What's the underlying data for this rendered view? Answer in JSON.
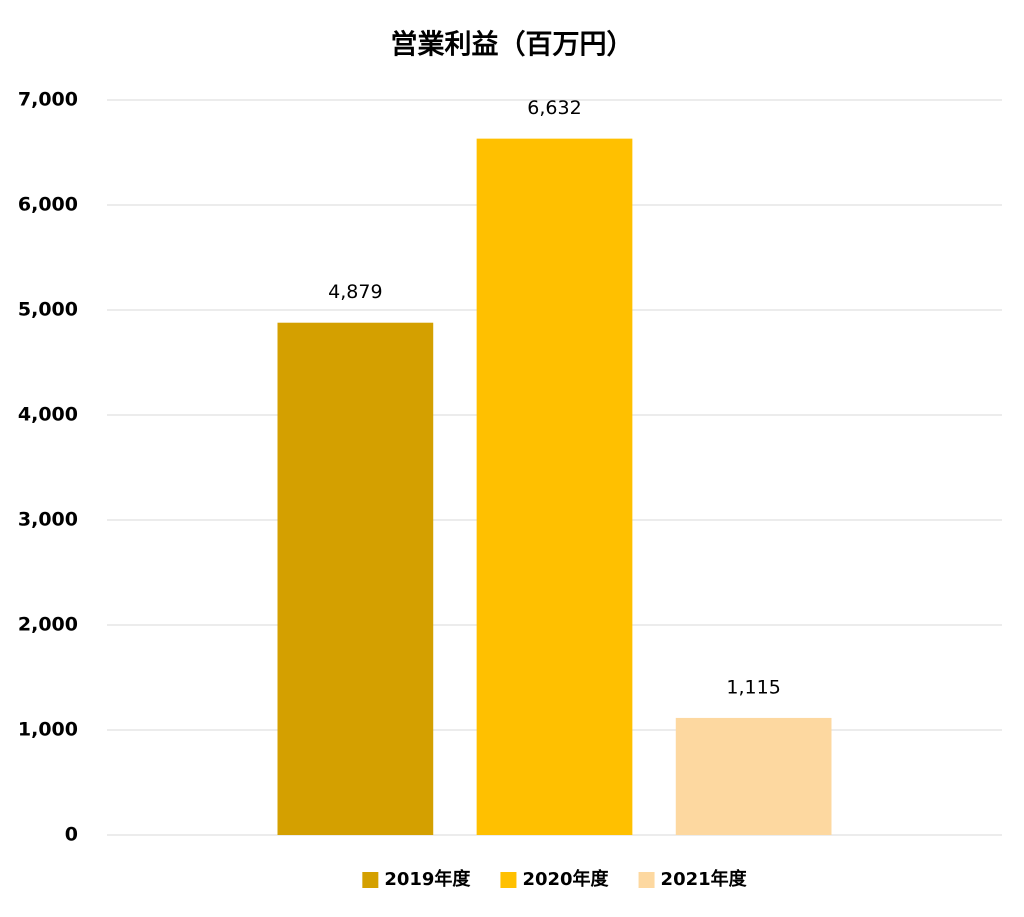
{
  "chart_data": {
    "type": "bar",
    "title": "営業利益（百万円）",
    "categories": [
      null
    ],
    "series": [
      {
        "name": "2019年度",
        "color": "#d4a000",
        "values": [
          4879
        ],
        "value_labels": [
          "4,879"
        ]
      },
      {
        "name": "2020年度",
        "color": "#ffc000",
        "values": [
          6632
        ],
        "value_labels": [
          "6,632"
        ]
      },
      {
        "name": "2021年度",
        "color": "#fdd8a0",
        "values": [
          1115
        ],
        "value_labels": [
          "1,115"
        ]
      }
    ],
    "ylim": [
      0,
      7000
    ],
    "yticks": [
      0,
      {
        "value": 1000,
        "label": "1,000"
      },
      {
        "value": 2000,
        "label": "2,000"
      },
      {
        "value": 3000,
        "label": "3,000"
      },
      {
        "value": 4000,
        "label": "4,000"
      },
      {
        "value": 5000,
        "label": "5,000"
      },
      {
        "value": 6000,
        "label": "6,000"
      },
      {
        "value": 7000,
        "label": "7,000"
      }
    ],
    "grid": true,
    "legend": "bottom"
  }
}
